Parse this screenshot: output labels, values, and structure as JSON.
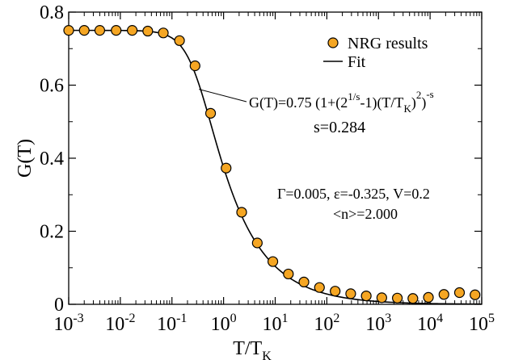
{
  "chart_data": {
    "type": "scatter",
    "x_scale": "log",
    "xlim": [
      0.001,
      100000
    ],
    "ylim": [
      0,
      0.8
    ],
    "xlabel": {
      "main": "T/T",
      "sub": "K"
    },
    "ylabel": "G(T)",
    "grid": false,
    "legend_position": "top-right",
    "x_ticks": [
      {
        "value": 0.001,
        "base": "10",
        "exp": "-3"
      },
      {
        "value": 0.01,
        "base": "10",
        "exp": "-2"
      },
      {
        "value": 0.1,
        "base": "10",
        "exp": "-1"
      },
      {
        "value": 1,
        "base": "10",
        "exp": "0"
      },
      {
        "value": 10,
        "base": "10",
        "exp": "1"
      },
      {
        "value": 100,
        "base": "10",
        "exp": "2"
      },
      {
        "value": 1000,
        "base": "10",
        "exp": "3"
      },
      {
        "value": 10000,
        "base": "10",
        "exp": "4"
      },
      {
        "value": 100000,
        "base": "10",
        "exp": "5"
      }
    ],
    "y_ticks": [
      {
        "value": 0,
        "label": "0"
      },
      {
        "value": 0.2,
        "label": "0.2"
      },
      {
        "value": 0.4,
        "label": "0.4"
      },
      {
        "value": 0.6,
        "label": "0.6"
      },
      {
        "value": 0.8,
        "label": "0.8"
      }
    ],
    "series": [
      {
        "name": "NRG results",
        "kind": "scatter",
        "marker": "circle",
        "color": "#F5A623",
        "edge_color": "#000000",
        "points": [
          {
            "x": 0.001,
            "y": 0.75
          },
          {
            "x": 0.002,
            "y": 0.75
          },
          {
            "x": 0.004,
            "y": 0.75
          },
          {
            "x": 0.0083,
            "y": 0.75
          },
          {
            "x": 0.017,
            "y": 0.75
          },
          {
            "x": 0.034,
            "y": 0.748
          },
          {
            "x": 0.068,
            "y": 0.743
          },
          {
            "x": 0.14,
            "y": 0.722
          },
          {
            "x": 0.28,
            "y": 0.653
          },
          {
            "x": 0.56,
            "y": 0.523
          },
          {
            "x": 1.12,
            "y": 0.373
          },
          {
            "x": 2.24,
            "y": 0.252
          },
          {
            "x": 4.5,
            "y": 0.168
          },
          {
            "x": 9.0,
            "y": 0.117
          },
          {
            "x": 18,
            "y": 0.083
          },
          {
            "x": 36,
            "y": 0.061
          },
          {
            "x": 72,
            "y": 0.046
          },
          {
            "x": 145,
            "y": 0.036
          },
          {
            "x": 290,
            "y": 0.029
          },
          {
            "x": 580,
            "y": 0.023
          },
          {
            "x": 1160,
            "y": 0.018
          },
          {
            "x": 2320,
            "y": 0.017
          },
          {
            "x": 4640,
            "y": 0.016
          },
          {
            "x": 9280,
            "y": 0.019
          },
          {
            "x": 18560,
            "y": 0.027
          },
          {
            "x": 37120,
            "y": 0.032
          },
          {
            "x": 74240,
            "y": 0.026
          }
        ]
      },
      {
        "name": "Fit",
        "kind": "line",
        "color": "#000000",
        "formula": {
          "G0": 0.75,
          "s": 0.284,
          "TK": 1
        },
        "x_range": [
          0.001,
          100000
        ]
      }
    ],
    "annotations": {
      "fit_formula": {
        "prefix": "G(T)=0.75 (1+(2",
        "exp1": "1/s",
        "middle": "-1)(T/T",
        "sub": "K",
        "close": ")",
        "exp2": "2",
        "tail": ")",
        "exp3": "-s",
        "points_to": {
          "x": 0.29,
          "y": 0.655
        }
      },
      "s_value": "s=0.284",
      "params_line1": "Γ=0.005, ε=-0.325, V=0.2",
      "params_line2": "<n>=2.000"
    }
  }
}
